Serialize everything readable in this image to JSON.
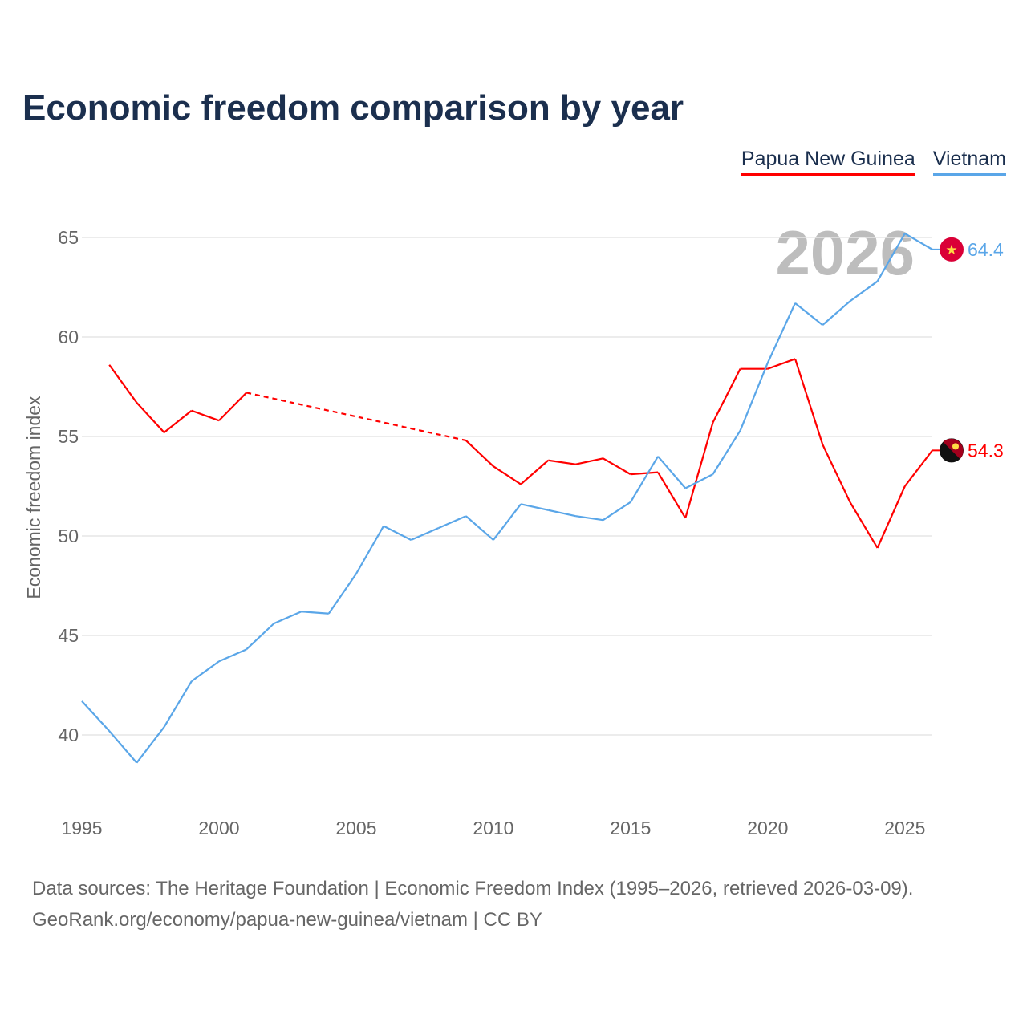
{
  "title": "Economic freedom comparison by year",
  "source_line1": "Data sources: The Heritage Foundation | Economic Freedom Index (1995–2026, retrieved 2026-03-09).",
  "source_line2": "GeoRank.org/economy/papua-new-guinea/vietnam | CC BY",
  "chart_data": {
    "type": "line",
    "title": "Economic freedom comparison by year",
    "ylabel": "Economic freedom index",
    "xlabel": "",
    "xlim": [
      1995,
      2026
    ],
    "ylim": [
      37,
      67
    ],
    "xticks": [
      "1995",
      "2000",
      "2005",
      "2010",
      "2015",
      "2020",
      "2025"
    ],
    "yticks": [
      "40",
      "45",
      "50",
      "55",
      "60",
      "65"
    ],
    "grid": true,
    "legend_position": "top-right",
    "year_watermark": "2026",
    "x": [
      1995,
      1996,
      1997,
      1998,
      1999,
      2000,
      2001,
      2002,
      2003,
      2004,
      2005,
      2006,
      2007,
      2008,
      2009,
      2010,
      2011,
      2012,
      2013,
      2014,
      2015,
      2016,
      2017,
      2018,
      2019,
      2020,
      2021,
      2022,
      2023,
      2024,
      2025,
      2026
    ],
    "series": [
      {
        "name": "Papua New Guinea",
        "color": "#ff0000",
        "end_label": "54.3",
        "values": [
          null,
          58.6,
          56.7,
          55.2,
          56.3,
          55.8,
          57.2,
          null,
          null,
          null,
          null,
          null,
          null,
          null,
          54.8,
          53.5,
          52.6,
          53.8,
          53.6,
          53.9,
          53.1,
          53.2,
          50.9,
          55.7,
          58.4,
          58.4,
          58.9,
          54.6,
          51.7,
          49.4,
          52.5,
          54.3
        ]
      },
      {
        "name": "Vietnam",
        "color": "#5aa6e8",
        "end_label": "64.4",
        "values": [
          41.7,
          40.2,
          38.6,
          40.4,
          42.7,
          43.7,
          44.3,
          45.6,
          46.2,
          46.1,
          48.1,
          50.5,
          49.8,
          50.4,
          51.0,
          49.8,
          51.6,
          51.3,
          51.0,
          50.8,
          51.7,
          54.0,
          52.4,
          53.1,
          55.3,
          58.7,
          61.7,
          60.6,
          61.8,
          62.8,
          65.2,
          64.4
        ]
      }
    ]
  }
}
